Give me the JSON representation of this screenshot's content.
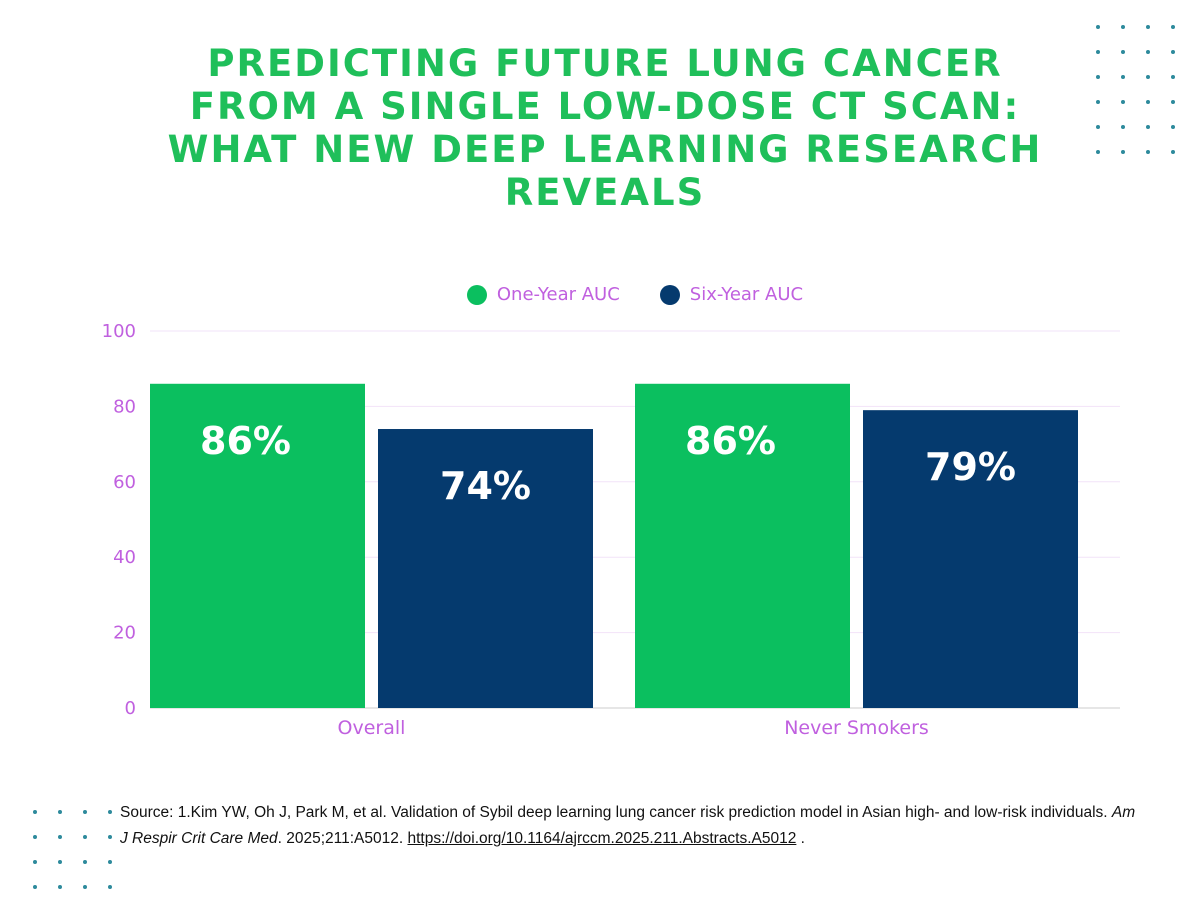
{
  "title": "PREDICTING FUTURE LUNG CANCER FROM A SINGLE LOW-DOSE CT SCAN: WHAT NEW DEEP LEARNING RESEARCH REVEALS",
  "colors": {
    "title": "#1fbf5a",
    "one_year": "#0bbf5f",
    "six_year": "#053a6e",
    "axis_text": "#c060df",
    "gridline": "#f2e3f8",
    "dots": "#2d8a9c"
  },
  "chart_data": {
    "type": "bar",
    "categories": [
      "Overall",
      "Never Smokers"
    ],
    "series": [
      {
        "name": "One-Year AUC",
        "values": [
          86,
          86
        ],
        "labels": [
          "86%",
          "86%"
        ]
      },
      {
        "name": "Six-Year AUC",
        "values": [
          74,
          79
        ],
        "labels": [
          "74%",
          "79%"
        ]
      }
    ],
    "ylim": [
      0,
      100
    ],
    "yticks": [
      0,
      20,
      40,
      60,
      80,
      100
    ],
    "grid": true,
    "legend_position": "top-center"
  },
  "source": {
    "prefix": "Source: 1.Kim YW, Oh J, Park M, et al. Validation of Sybil deep learning lung cancer risk prediction model in Asian high- and low-risk individuals.",
    "journal": "Am J Respir Crit Care Med",
    "details": ". 2025;211:A5012.",
    "link": "https://doi.org/10.1164/ajrccm.2025.211.Abstracts.A5012",
    "suffix": " ."
  }
}
